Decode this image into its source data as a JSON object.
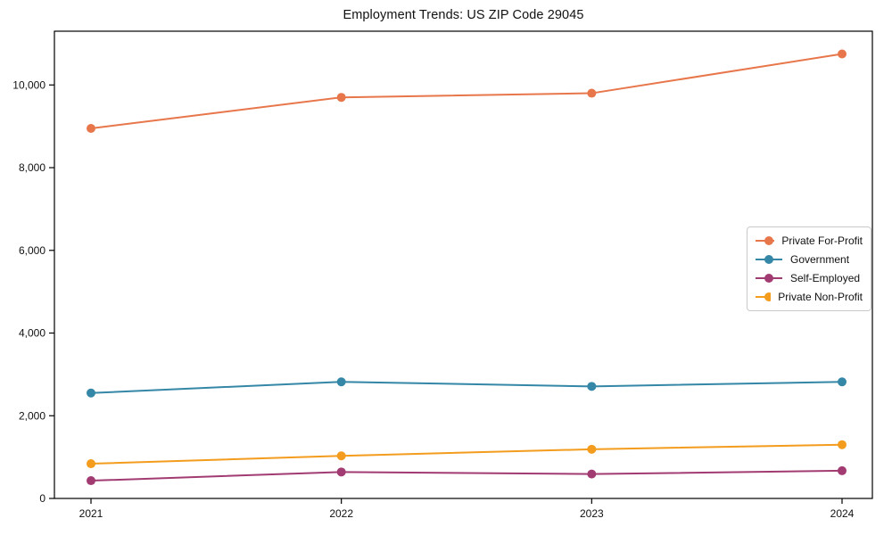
{
  "page": {
    "title": "Employment Trends: US ZIP Code 29045"
  },
  "chart_data": {
    "type": "line",
    "title": "Employment Trends: US ZIP Code 29045",
    "xlabel": "",
    "ylabel": "",
    "x_labels": [
      "2021",
      "2022",
      "2023",
      "2024"
    ],
    "series": [
      {
        "name": "Private For-Profit",
        "color": "#E8764B",
        "values": [
          8950,
          9700,
          9800,
          10750
        ]
      },
      {
        "name": "Government",
        "color": "#3487A6",
        "values": [
          2550,
          2820,
          2710,
          2820
        ]
      },
      {
        "name": "Self-Employed",
        "color": "#A23B72",
        "values": [
          430,
          640,
          590,
          670
        ]
      },
      {
        "name": "Private Non-Profit",
        "color": "#F39C1D",
        "values": [
          840,
          1030,
          1190,
          1300
        ]
      }
    ],
    "y_ticks": [
      0,
      2000,
      4000,
      6000,
      8000,
      10000
    ],
    "ylim": [
      0,
      11300
    ],
    "grid": false,
    "legend_position": "center-right",
    "marker": "circle",
    "plot_border": "box",
    "axis_color": "#000000",
    "tick_label_color": "#111111"
  }
}
